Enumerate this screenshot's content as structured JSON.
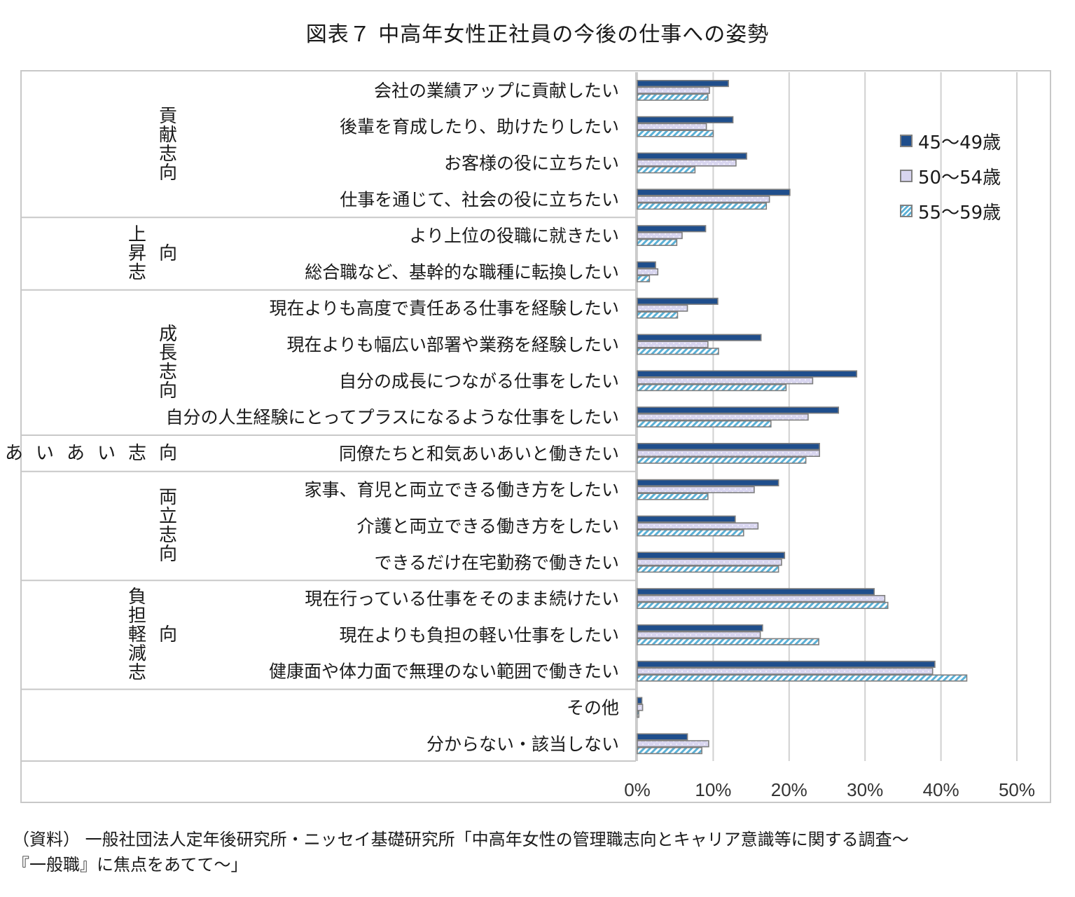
{
  "title": "図表７ 中高年女性正社員の今後の仕事への姿勢",
  "source_lines": [
    "（資料） 一般社団法人定年後研究所・ニッセイ基礎研究所「中高年女性の管理職志向とキャリア意識等に関する調査〜",
    "『一般職』に焦点をあてて〜」"
  ],
  "colors": {
    "series_1": "#1f4e8c",
    "series_2": "#d8d5ef",
    "series_3_hatch": "#5ab0d6",
    "bar_border": "#7f7f7f",
    "grid": "#d0d0d0"
  },
  "chart_data": {
    "type": "bar",
    "orientation": "horizontal",
    "xlim": [
      0,
      50
    ],
    "x_ticks": [
      "0%",
      "10%",
      "20%",
      "30%",
      "40%",
      "50%"
    ],
    "legend_position": "top-right",
    "grid": true,
    "groups": [
      {
        "name": "貢献志向",
        "categories": [
          "会社の業績アップに貢献したい",
          "後輩を育成したり、助けたりしたい",
          "お客様の役に立ちたい",
          "仕事を通じて、社会の役に立ちたい"
        ]
      },
      {
        "name": "上昇志向",
        "categories": [
          "より上位の役職に就きたい",
          "総合職など、基幹的な職種に転換したい"
        ]
      },
      {
        "name": "成長志向",
        "categories": [
          "現在よりも高度で責任ある仕事を経験したい",
          "現在よりも幅広い部署や業務を経験したい",
          "自分の成長につながる仕事をしたい",
          "自分の人生経験にとってプラスになるような仕事をしたい"
        ]
      },
      {
        "name": "和気あいあい志向",
        "categories": [
          "同僚たちと和気あいあいと働きたい"
        ]
      },
      {
        "name": "両立志向",
        "categories": [
          "家事、育児と両立できる働き方をしたい",
          "介護と両立できる働き方をしたい",
          "できるだけ在宅勤務で働きたい"
        ]
      },
      {
        "name": "負担軽減志向",
        "categories": [
          "現在行っている仕事をそのまま続けたい",
          "現在よりも負担の軽い仕事をしたい",
          "健康面や体力面で無理のない範囲で働きたい"
        ]
      },
      {
        "name": "",
        "categories": [
          "その他",
          "分からない・該当しない"
        ]
      }
    ],
    "series": [
      {
        "name": "45～49歳",
        "values": [
          12.0,
          12.6,
          14.4,
          20.1,
          9.0,
          2.4,
          10.6,
          16.3,
          28.9,
          26.5,
          24.0,
          18.6,
          12.9,
          19.4,
          31.2,
          16.5,
          39.2,
          0.6,
          6.6
        ]
      },
      {
        "name": "50～54歳",
        "values": [
          9.5,
          9.1,
          13.0,
          17.4,
          5.9,
          2.7,
          6.6,
          9.3,
          23.1,
          22.5,
          24.0,
          15.4,
          15.9,
          19.0,
          32.6,
          16.2,
          38.9,
          0.7,
          9.4
        ]
      },
      {
        "name": "55～59歳",
        "values": [
          9.3,
          10.0,
          7.6,
          17.0,
          5.2,
          1.6,
          5.3,
          10.7,
          19.6,
          17.6,
          22.2,
          9.3,
          14.0,
          18.6,
          33.0,
          23.9,
          43.4,
          0.2,
          8.5
        ]
      }
    ]
  }
}
